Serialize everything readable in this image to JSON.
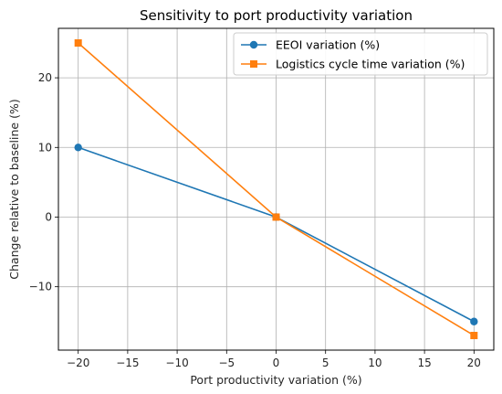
{
  "chart_data": {
    "type": "line",
    "title": "Sensitivity to port productivity variation",
    "xlabel": "Port productivity variation (%)",
    "ylabel": "Change relative to baseline (%)",
    "x": [
      -20,
      0,
      20
    ],
    "series": [
      {
        "name": "EEOI variation (%)",
        "values": [
          10,
          0,
          -15
        ],
        "color": "#1f77b4",
        "marker": "circle"
      },
      {
        "name": "Logistics cycle time variation (%)",
        "values": [
          25,
          0,
          -17
        ],
        "color": "#ff7f0e",
        "marker": "square"
      }
    ],
    "xlim": [
      -22,
      22
    ],
    "ylim": [
      -19.1,
      27.1
    ],
    "xticks": [
      -20,
      -15,
      -10,
      -5,
      0,
      5,
      10,
      15,
      20
    ],
    "yticks": [
      -10,
      0,
      10,
      20
    ],
    "grid": true,
    "legend_position": "top-right"
  }
}
